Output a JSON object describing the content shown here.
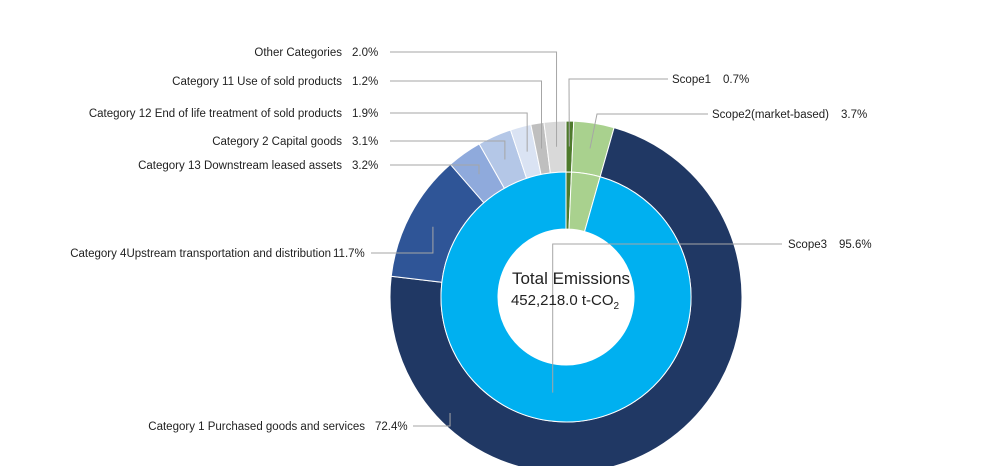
{
  "chart_data": {
    "type": "pie",
    "subtype": "nested-donut",
    "center_label": {
      "title": "Total Emissions",
      "value": "452,218.0 t-CO",
      "unit_subscript": "2"
    },
    "inner_ring": [
      {
        "name": "Scope1",
        "value": 0.7,
        "value_label": "0.7%",
        "color": "#4e7a2c"
      },
      {
        "name": "Scope2(market-based)",
        "value": 3.7,
        "value_label": "3.7%",
        "color": "#a9d18e"
      },
      {
        "name": "Scope3",
        "value": 95.6,
        "value_label": "95.6%",
        "color": "#00b0f0"
      }
    ],
    "outer_ring": [
      {
        "name": "Scope1",
        "value": 0.7,
        "color": "#4e7a2c"
      },
      {
        "name": "Scope2(market-based)",
        "value": 3.7,
        "color": "#a9d18e"
      },
      {
        "name": "Category 1 Purchased goods and services",
        "value": 72.4,
        "value_label": "72.4%",
        "color": "#203864"
      },
      {
        "name": "Category 4Upstream transportation and distribution",
        "value": 11.7,
        "value_label": "11.7%",
        "color": "#2f5597"
      },
      {
        "name": "Category 13 Downstream leased assets",
        "value": 3.2,
        "value_label": "3.2%",
        "color": "#8faadc"
      },
      {
        "name": "Category 2 Capital goods",
        "value": 3.1,
        "value_label": "3.1%",
        "color": "#b4c7e7"
      },
      {
        "name": "Category 12 End of life treatment of sold products",
        "value": 1.9,
        "value_label": "1.9%",
        "color": "#dae3f3"
      },
      {
        "name": "Category 11 Use of sold products",
        "value": 1.2,
        "value_label": "1.2%",
        "color": "#bfbfbf"
      },
      {
        "name": "Other Categories",
        "value": 2.0,
        "value_label": "2.0%",
        "color": "#d9d9d9"
      }
    ]
  }
}
